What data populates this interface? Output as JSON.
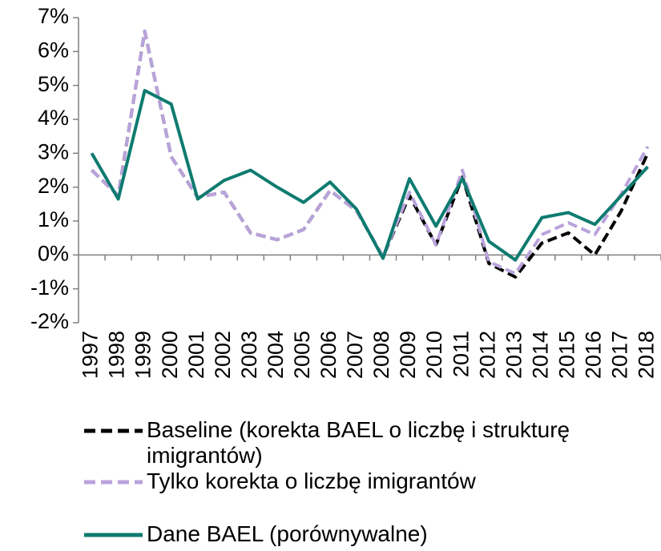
{
  "chart_data": {
    "type": "line",
    "categories": [
      "1997",
      "1998",
      "1999",
      "2000",
      "2001",
      "2002",
      "2003",
      "2004",
      "2005",
      "2006",
      "2007",
      "2008",
      "2009",
      "2010",
      "2011",
      "2012",
      "2013",
      "2014",
      "2015",
      "2016",
      "2017",
      "2018"
    ],
    "series": [
      {
        "name": "Baseline (korekta BAEL o liczbę i strukturę imigrantów)",
        "color": "#000000",
        "dash": true,
        "values": [
          2.5,
          1.75,
          6.6,
          2.9,
          1.7,
          1.85,
          0.65,
          0.45,
          0.75,
          1.9,
          1.3,
          -0.05,
          1.75,
          0.3,
          2.3,
          -0.25,
          -0.65,
          0.35,
          0.65,
          0.0,
          1.3,
          3.0
        ]
      },
      {
        "name": "Tylko korekta o liczbę imigrantów",
        "color": "#b9a3dc",
        "dash": true,
        "values": [
          2.5,
          1.75,
          6.6,
          2.9,
          1.7,
          1.85,
          0.65,
          0.45,
          0.75,
          1.9,
          1.3,
          -0.05,
          1.85,
          0.3,
          2.5,
          -0.2,
          -0.55,
          0.6,
          0.95,
          0.6,
          1.8,
          3.2
        ]
      },
      {
        "name": "Dane BAEL (porównywalne)",
        "color": "#0e7b70",
        "dash": false,
        "values": [
          3.0,
          1.65,
          4.85,
          4.45,
          1.65,
          2.2,
          2.5,
          2.0,
          1.55,
          2.15,
          1.35,
          -0.1,
          2.25,
          0.85,
          2.25,
          0.4,
          -0.15,
          1.1,
          1.25,
          0.9,
          1.75,
          2.6
        ]
      }
    ],
    "ylim": [
      -2,
      7
    ],
    "yticks": [
      {
        "value": -2,
        "label": "-2%"
      },
      {
        "value": -1,
        "label": "-1%"
      },
      {
        "value": 0,
        "label": "0%"
      },
      {
        "value": 1,
        "label": "1%"
      },
      {
        "value": 2,
        "label": "2%"
      },
      {
        "value": 3,
        "label": "3%"
      },
      {
        "value": 4,
        "label": "4%"
      },
      {
        "value": 5,
        "label": "5%"
      },
      {
        "value": 6,
        "label": "6%"
      },
      {
        "value": 7,
        "label": "7%"
      }
    ],
    "grid": false
  }
}
